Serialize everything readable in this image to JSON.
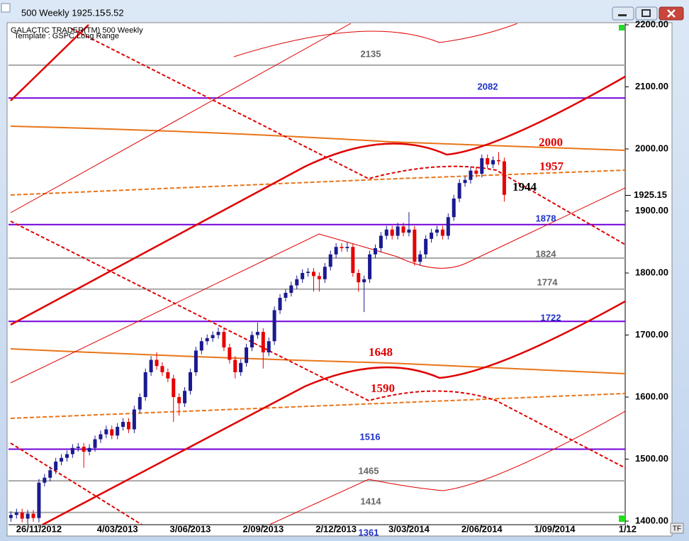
{
  "window": {
    "title": "500 Weekly 1925.15",
    "change": "-5.52"
  },
  "header": {
    "name": "GALACTIC TRADER(TM)   500 Weekly",
    "template": "Template : GSPC Long Range"
  },
  "footer": "TF",
  "chart_data": {
    "type": "candlestick",
    "up_color": "#1a1a90",
    "down_color": "#e60000",
    "x": [
      "2012-10-22",
      "2012-10-29",
      "2012-11-05",
      "2012-11-12",
      "2012-11-19",
      "2012-11-26",
      "2012-12-03",
      "2012-12-10",
      "2012-12-17",
      "2012-12-24",
      "2012-12-31",
      "2013-01-07",
      "2013-01-14",
      "2013-01-21",
      "2013-01-28",
      "2013-02-04",
      "2013-02-11",
      "2013-02-18",
      "2013-02-25",
      "2013-03-04",
      "2013-03-11",
      "2013-03-18",
      "2013-03-25",
      "2013-04-01",
      "2013-04-08",
      "2013-04-15",
      "2013-04-22",
      "2013-04-29",
      "2013-05-06",
      "2013-05-13",
      "2013-05-20",
      "2013-05-27",
      "2013-06-03",
      "2013-06-10",
      "2013-06-17",
      "2013-06-24",
      "2013-07-01",
      "2013-07-08",
      "2013-07-15",
      "2013-07-22",
      "2013-07-29",
      "2013-08-05",
      "2013-08-12",
      "2013-08-19",
      "2013-08-26",
      "2013-09-02",
      "2013-09-09",
      "2013-09-16",
      "2013-09-23",
      "2013-09-30",
      "2013-10-07",
      "2013-10-14",
      "2013-10-21",
      "2013-10-28",
      "2013-11-04",
      "2013-11-11",
      "2013-11-18",
      "2013-11-25",
      "2013-12-02",
      "2013-12-09",
      "2013-12-16",
      "2013-12-23",
      "2013-12-30",
      "2014-01-06",
      "2014-01-13",
      "2014-01-20",
      "2014-01-27",
      "2014-02-03",
      "2014-02-10",
      "2014-02-17",
      "2014-02-24",
      "2014-03-03",
      "2014-03-10",
      "2014-03-17",
      "2014-03-24",
      "2014-03-31",
      "2014-04-07",
      "2014-04-14",
      "2014-04-21",
      "2014-04-28",
      "2014-05-05",
      "2014-05-12",
      "2014-05-19",
      "2014-05-26",
      "2014-06-02",
      "2014-06-09",
      "2014-06-16",
      "2014-06-23",
      "2014-06-30"
    ],
    "open": [
      1405,
      1410,
      1414,
      1404,
      1412,
      1405,
      1462,
      1470,
      1482,
      1496,
      1502,
      1508,
      1518,
      1520,
      1512,
      1518,
      1532,
      1540,
      1548,
      1538,
      1552,
      1560,
      1548,
      1580,
      1600,
      1640,
      1660,
      1650,
      1640,
      1630,
      1600,
      1590,
      1610,
      1640,
      1675,
      1690,
      1695,
      1700,
      1705,
      1680,
      1660,
      1640,
      1655,
      1680,
      1700,
      1705,
      1672,
      1690,
      1740,
      1760,
      1768,
      1780,
      1790,
      1800,
      1802,
      1795,
      1790,
      1810,
      1830,
      1842,
      1840,
      1842,
      1800,
      1785,
      1790,
      1830,
      1840,
      1860,
      1870,
      1860,
      1875,
      1865,
      1870,
      1818,
      1830,
      1855,
      1865,
      1870,
      1860,
      1890,
      1920,
      1945,
      1950,
      1965,
      1960,
      1985,
      1975,
      1982,
      1980
    ],
    "high": [
      1416,
      1420,
      1420,
      1418,
      1418,
      1468,
      1476,
      1488,
      1502,
      1508,
      1514,
      1524,
      1526,
      1526,
      1524,
      1538,
      1546,
      1554,
      1554,
      1558,
      1566,
      1566,
      1586,
      1606,
      1646,
      1666,
      1672,
      1656,
      1646,
      1636,
      1606,
      1616,
      1646,
      1681,
      1696,
      1701,
      1706,
      1712,
      1711,
      1686,
      1666,
      1661,
      1686,
      1706,
      1720,
      1711,
      1696,
      1746,
      1766,
      1774,
      1786,
      1796,
      1806,
      1808,
      1808,
      1801,
      1816,
      1836,
      1848,
      1848,
      1850,
      1848,
      1806,
      1796,
      1836,
      1846,
      1866,
      1876,
      1876,
      1881,
      1881,
      1898,
      1876,
      1836,
      1861,
      1871,
      1876,
      1876,
      1896,
      1926,
      1951,
      1956,
      1971,
      1971,
      1991,
      1991,
      1988,
      1995,
      1986
    ],
    "low": [
      1399,
      1404,
      1398,
      1395,
      1399,
      1398,
      1456,
      1464,
      1476,
      1490,
      1496,
      1502,
      1512,
      1486,
      1506,
      1512,
      1526,
      1534,
      1532,
      1532,
      1546,
      1542,
      1542,
      1574,
      1594,
      1634,
      1644,
      1634,
      1624,
      1560,
      1570,
      1584,
      1604,
      1634,
      1669,
      1684,
      1689,
      1694,
      1674,
      1654,
      1630,
      1634,
      1649,
      1674,
      1694,
      1646,
      1666,
      1684,
      1734,
      1754,
      1762,
      1774,
      1784,
      1794,
      1770,
      1770,
      1784,
      1804,
      1824,
      1834,
      1834,
      1794,
      1770,
      1737,
      1784,
      1824,
      1834,
      1854,
      1854,
      1854,
      1859,
      1859,
      1812,
      1812,
      1824,
      1849,
      1859,
      1854,
      1854,
      1884,
      1914,
      1939,
      1944,
      1954,
      1954,
      1969,
      1969,
      1974,
      1915
    ],
    "close": [
      1410,
      1414,
      1404,
      1412,
      1405,
      1462,
      1470,
      1482,
      1496,
      1502,
      1508,
      1518,
      1520,
      1512,
      1518,
      1532,
      1540,
      1548,
      1538,
      1552,
      1560,
      1548,
      1580,
      1600,
      1640,
      1660,
      1650,
      1640,
      1630,
      1600,
      1590,
      1610,
      1640,
      1675,
      1690,
      1695,
      1700,
      1705,
      1680,
      1660,
      1640,
      1655,
      1680,
      1700,
      1705,
      1672,
      1690,
      1740,
      1760,
      1768,
      1780,
      1790,
      1800,
      1802,
      1795,
      1790,
      1810,
      1830,
      1842,
      1840,
      1842,
      1800,
      1785,
      1790,
      1830,
      1840,
      1860,
      1870,
      1860,
      1875,
      1865,
      1870,
      1818,
      1830,
      1855,
      1865,
      1870,
      1860,
      1890,
      1920,
      1945,
      1950,
      1965,
      1960,
      1985,
      1975,
      1982,
      1980,
      1926
    ],
    "xlim": [
      "2012-10-19",
      "2014-11-28"
    ],
    "xticks": [
      {
        "value": "2012-11-26",
        "label": "26/11/2012"
      },
      {
        "value": "2013-03-04",
        "label": "4/03/2013"
      },
      {
        "value": "2013-06-03",
        "label": "3/06/2013"
      },
      {
        "value": "2013-09-02",
        "label": "2/09/2013"
      },
      {
        "value": "2013-12-02",
        "label": "2/12/2013"
      },
      {
        "value": "2014-03-03",
        "label": "3/03/2014"
      },
      {
        "value": "2014-06-02",
        "label": "2/06/2014"
      },
      {
        "value": "2014-09-01",
        "label": "1/09/2014"
      },
      {
        "value": "2014-12-01",
        "label": "1/12"
      }
    ],
    "ylim": [
      1400,
      2200
    ],
    "yticks": [
      {
        "value": 2200,
        "label": "2200.00"
      },
      {
        "value": 2100,
        "label": "2100.00"
      },
      {
        "value": 2000,
        "label": "2000.00"
      },
      {
        "value": 1900,
        "label": "1900.00"
      },
      {
        "value": 1800,
        "label": "1800.00"
      },
      {
        "value": 1700,
        "label": "1700.00"
      },
      {
        "value": 1600,
        "label": "1600.00"
      },
      {
        "value": 1500,
        "label": "1500.00"
      },
      {
        "value": 1400,
        "label": "1400.00"
      }
    ],
    "last_price": {
      "value": 1925.15,
      "label": "1925.15"
    },
    "levels": [
      {
        "value": 2135,
        "color": "#666666",
        "line_color": "#a8a8a8"
      },
      {
        "value": 2082,
        "color": "#1e32c8",
        "line_color": "#7000d8"
      },
      {
        "value": 2000,
        "color": "#e00000"
      },
      {
        "value": 1957,
        "color": "#e00000"
      },
      {
        "value": 1944,
        "color": "#000000"
      },
      {
        "value": 1878,
        "color": "#1e32c8",
        "line_color": "#7000d8"
      },
      {
        "value": 1824,
        "color": "#666666",
        "line_color": "#a8a8a8"
      },
      {
        "value": 1774,
        "color": "#666666",
        "line_color": "#a8a8a8"
      },
      {
        "value": 1722,
        "color": "#1e32c8",
        "line_color": "#7000d8"
      },
      {
        "value": 1648,
        "color": "#e00000"
      },
      {
        "value": 1590,
        "color": "#e00000"
      },
      {
        "value": 1516,
        "color": "#1e32c8",
        "line_color": "#7000d8"
      },
      {
        "value": 1465,
        "color": "#666666",
        "line_color": "#a8a8a8"
      },
      {
        "value": 1414,
        "color": "#666666",
        "line_color": "#a8a8a8"
      },
      {
        "value": 1361,
        "color": "#1e32c8"
      }
    ]
  }
}
